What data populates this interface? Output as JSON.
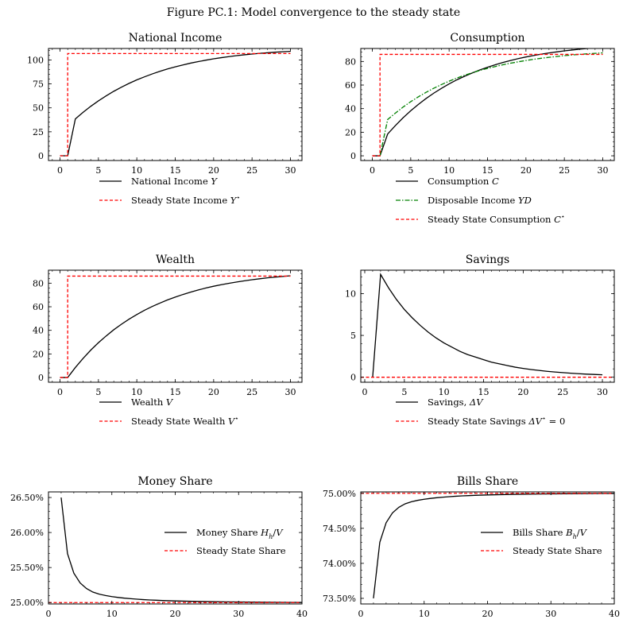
{
  "figure_title": "Figure PC.1: Model convergence to the steady state",
  "chart_data": [
    {
      "type": "line",
      "title": "National Income",
      "xlim": [
        -1.5,
        31.5
      ],
      "ylim": [
        -5,
        112
      ],
      "xticks": [
        0,
        5,
        10,
        15,
        20,
        25,
        30
      ],
      "yticks": [
        0,
        25,
        50,
        75,
        100
      ],
      "grid": false,
      "legend": "below",
      "series": [
        {
          "name": "National Income Y",
          "color": "#000000",
          "dash": "solid",
          "x": [
            0,
            1,
            2,
            3,
            4,
            5,
            6,
            7,
            8,
            9,
            10,
            11,
            12,
            13,
            14,
            15,
            16,
            17,
            18,
            19,
            20,
            21,
            22,
            23,
            24,
            25,
            26,
            27,
            28,
            29,
            30
          ],
          "y": [
            0,
            0,
            38.5,
            45.3,
            51.6,
            57.3,
            62.5,
            67.3,
            71.6,
            75.6,
            79.2,
            82.4,
            85.4,
            88.1,
            90.6,
            92.8,
            94.8,
            96.7,
            98.3,
            99.8,
            101.2,
            102.4,
            103.5,
            104.5,
            105.4,
            106.2,
            106.9,
            107.5,
            108.1,
            108.6,
            109.0
          ]
        },
        {
          "name": "Steady State Income Y*",
          "color": "#ff0000",
          "dash": "dashed",
          "x": [
            0,
            1,
            1,
            30
          ],
          "y": [
            0,
            0,
            106.7,
            106.7
          ]
        }
      ]
    },
    {
      "type": "line",
      "title": "Consumption",
      "xlim": [
        -1.5,
        31.5
      ],
      "ylim": [
        -4,
        91
      ],
      "xticks": [
        0,
        5,
        10,
        15,
        20,
        25,
        30
      ],
      "yticks": [
        0,
        20,
        40,
        60,
        80
      ],
      "grid": false,
      "legend": "below",
      "series": [
        {
          "name": "Consumption C",
          "color": "#000000",
          "dash": "solid",
          "x": [
            0,
            1,
            2,
            3,
            4,
            5,
            6,
            7,
            8,
            9,
            10,
            11,
            12,
            13,
            14,
            15,
            16,
            17,
            18,
            19,
            20,
            21,
            22,
            23,
            24,
            25,
            26,
            27,
            28,
            29,
            30
          ],
          "y": [
            0,
            0,
            18.5,
            25.6,
            32.2,
            38.2,
            43.6,
            48.6,
            53.1,
            57.2,
            61.0,
            64.4,
            67.4,
            70.2,
            72.8,
            75.1,
            77.2,
            79.1,
            80.8,
            82.4,
            83.8,
            85.0,
            86.2,
            87.2,
            88.1,
            89.0,
            89.7,
            90.4,
            91.0,
            91.5,
            92.0
          ]
        },
        {
          "name": "Disposable Income YD",
          "color": "#008000",
          "dash": "dashdot",
          "x": [
            1,
            2,
            3,
            4,
            5,
            6,
            7,
            8,
            9,
            10,
            11,
            12,
            13,
            14,
            15,
            16,
            17,
            18,
            19,
            20,
            21,
            22,
            23,
            24,
            25,
            26,
            27,
            28,
            29,
            30
          ],
          "y": [
            0,
            30.8,
            36.2,
            41.3,
            45.9,
            50.0,
            53.8,
            57.3,
            60.4,
            63.3,
            65.9,
            68.3,
            70.4,
            72.4,
            74.1,
            75.7,
            77.2,
            78.5,
            79.7,
            80.8,
            81.8,
            82.7,
            83.5,
            84.2,
            84.9,
            85.5,
            86.0,
            86.5,
            86.9,
            87.3
          ]
        },
        {
          "name": "Steady State Consumption C*",
          "color": "#ff0000",
          "dash": "dashed",
          "x": [
            0,
            1,
            1,
            30
          ],
          "y": [
            0,
            0,
            86.0,
            86.0
          ]
        }
      ]
    },
    {
      "type": "line",
      "title": "Wealth",
      "xlim": [
        -1.5,
        31.5
      ],
      "ylim": [
        -4,
        91
      ],
      "xticks": [
        0,
        5,
        10,
        15,
        20,
        25,
        30
      ],
      "yticks": [
        0,
        20,
        40,
        60,
        80
      ],
      "grid": false,
      "legend": "below",
      "series": [
        {
          "name": "Wealth V",
          "color": "#000000",
          "dash": "solid",
          "x": [
            0,
            1,
            2,
            3,
            4,
            5,
            6,
            7,
            8,
            9,
            10,
            11,
            12,
            13,
            14,
            15,
            16,
            17,
            18,
            19,
            20,
            21,
            22,
            23,
            24,
            25,
            26,
            27,
            28,
            29,
            30
          ],
          "y": [
            0,
            0,
            8.5,
            16.2,
            23.2,
            29.5,
            35.2,
            40.5,
            45.2,
            49.5,
            53.4,
            57.0,
            60.2,
            63.1,
            65.8,
            68.2,
            70.4,
            72.4,
            74.2,
            75.9,
            77.4,
            78.7,
            79.9,
            81.0,
            82.0,
            82.9,
            83.7,
            84.5,
            85.1,
            85.7,
            86.3
          ]
        },
        {
          "name": "Steady State Wealth V*",
          "color": "#ff0000",
          "dash": "dashed",
          "x": [
            0,
            1,
            1,
            30
          ],
          "y": [
            0,
            0,
            86.0,
            86.0
          ]
        }
      ]
    },
    {
      "type": "line",
      "title": "Savings",
      "xlim": [
        -0.5,
        31.5
      ],
      "ylim": [
        -0.6,
        12.8
      ],
      "xticks": [
        0,
        5,
        10,
        15,
        20,
        25,
        30
      ],
      "yticks": [
        0,
        5,
        10
      ],
      "grid": false,
      "legend": "below",
      "series": [
        {
          "name": "Savings, ΔV",
          "color": "#000000",
          "dash": "solid",
          "x": [
            1,
            2,
            3,
            4,
            5,
            6,
            7,
            8,
            9,
            10,
            11,
            12,
            13,
            14,
            15,
            16,
            17,
            18,
            19,
            20,
            21,
            22,
            23,
            24,
            25,
            26,
            27,
            28,
            29,
            30
          ],
          "y": [
            0,
            12.3,
            10.7,
            9.3,
            8.1,
            7.1,
            6.2,
            5.4,
            4.7,
            4.1,
            3.6,
            3.1,
            2.7,
            2.4,
            2.1,
            1.8,
            1.6,
            1.4,
            1.2,
            1.05,
            0.92,
            0.81,
            0.71,
            0.62,
            0.55,
            0.48,
            0.42,
            0.37,
            0.33,
            0.29
          ]
        },
        {
          "name": "Steady State Savings ΔV* = 0",
          "color": "#ff0000",
          "dash": "dashed",
          "x": [
            -0.5,
            31.5
          ],
          "y": [
            0,
            0
          ]
        }
      ]
    },
    {
      "type": "line",
      "title": "Money Share",
      "xlim": [
        0,
        40
      ],
      "ylim": [
        24.98,
        26.58
      ],
      "xticks": [
        0,
        10,
        20,
        30,
        40
      ],
      "yticks": [
        25.0,
        25.5,
        26.0,
        26.5
      ],
      "ytick_labels": [
        "25.00%",
        "25.50%",
        "26.00%",
        "26.50%"
      ],
      "grid": false,
      "legend": "center-right",
      "series": [
        {
          "name": "Money Share Hh/V",
          "color": "#000000",
          "dash": "solid",
          "x": [
            2,
            3,
            4,
            5,
            6,
            7,
            8,
            9,
            10,
            11,
            12,
            13,
            14,
            15,
            16,
            17,
            18,
            19,
            20,
            22,
            24,
            26,
            28,
            30,
            32,
            34,
            36,
            38,
            40
          ],
          "y": [
            26.5,
            25.7,
            25.42,
            25.28,
            25.2,
            25.15,
            25.12,
            25.1,
            25.085,
            25.073,
            25.063,
            25.055,
            25.048,
            25.042,
            25.037,
            25.033,
            25.029,
            25.026,
            25.023,
            25.019,
            25.015,
            25.012,
            25.01,
            25.008,
            25.006,
            25.005,
            25.004,
            25.003,
            25.002
          ]
        },
        {
          "name": "Steady State Share",
          "color": "#ff0000",
          "dash": "dashed",
          "x": [
            0,
            40
          ],
          "y": [
            25.0,
            25.0
          ]
        }
      ]
    },
    {
      "type": "line",
      "title": "Bills Share",
      "xlim": [
        0,
        40
      ],
      "ylim": [
        73.42,
        75.02
      ],
      "xticks": [
        0,
        10,
        20,
        30,
        40
      ],
      "yticks": [
        73.5,
        74.0,
        74.5,
        75.0
      ],
      "ytick_labels": [
        "73.50%",
        "74.00%",
        "74.50%",
        "75.00%"
      ],
      "grid": false,
      "legend": "center-right",
      "series": [
        {
          "name": "Bills Share Bh/V",
          "color": "#000000",
          "dash": "solid",
          "x": [
            2,
            3,
            4,
            5,
            6,
            7,
            8,
            9,
            10,
            11,
            12,
            13,
            14,
            15,
            16,
            17,
            18,
            19,
            20,
            22,
            24,
            26,
            28,
            30,
            32,
            34,
            36,
            38,
            40
          ],
          "y": [
            73.5,
            74.3,
            74.58,
            74.72,
            74.8,
            74.85,
            74.88,
            74.9,
            74.915,
            74.927,
            74.937,
            74.945,
            74.952,
            74.958,
            74.963,
            74.967,
            74.971,
            74.974,
            74.977,
            74.981,
            74.985,
            74.988,
            74.99,
            74.992,
            74.994,
            74.995,
            74.996,
            74.997,
            74.998
          ]
        },
        {
          "name": "Steady State Share",
          "color": "#ff0000",
          "dash": "dashed",
          "x": [
            0,
            40
          ],
          "y": [
            75.0,
            75.0
          ]
        }
      ]
    }
  ]
}
